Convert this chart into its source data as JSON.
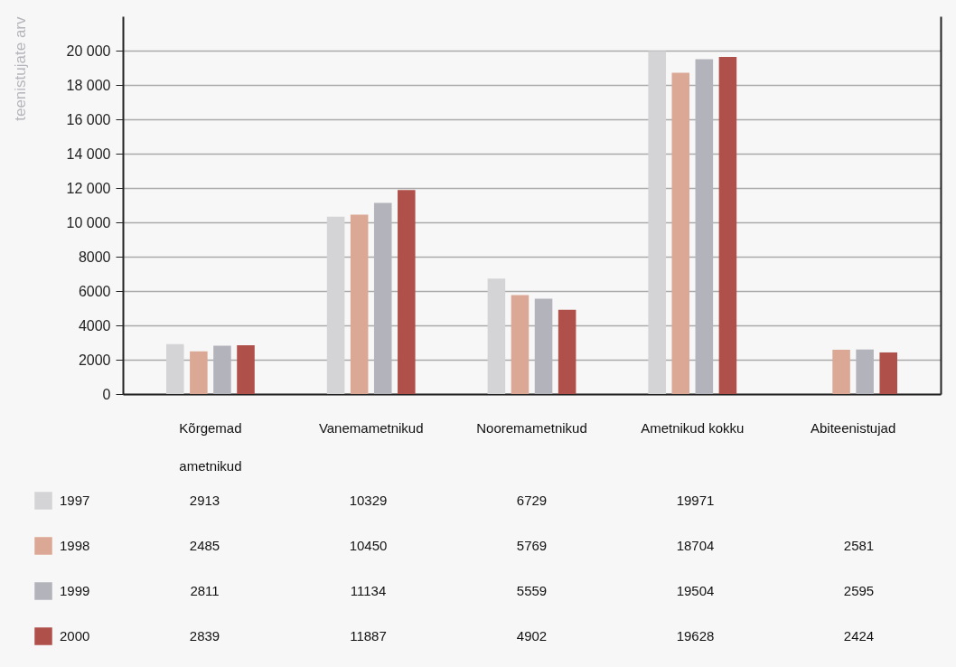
{
  "chart_data": {
    "type": "bar",
    "ylabel": "teenistujate arv",
    "categories": [
      "Kõrgemad ametnikud",
      "Vanemametnikud",
      "Nooremametnikud",
      "Ametnikud kokku",
      "Abiteenistujad"
    ],
    "series": [
      {
        "name": "1997",
        "color": "#d4d4d6",
        "values": [
          2913,
          10329,
          6729,
          19971,
          null
        ]
      },
      {
        "name": "1998",
        "color": "#dca896",
        "values": [
          2485,
          10450,
          5769,
          18704,
          2581
        ]
      },
      {
        "name": "1999",
        "color": "#b3b3bb",
        "values": [
          2811,
          11134,
          5559,
          19504,
          2595
        ]
      },
      {
        "name": "2000",
        "color": "#b0504a",
        "values": [
          2839,
          11887,
          4902,
          19628,
          2424
        ]
      }
    ],
    "ylim": [
      0,
      22000
    ],
    "yticks": [
      0,
      2000,
      4000,
      6000,
      8000,
      {
        "value": 10000,
        "label": "10 000"
      },
      {
        "value": 12000,
        "label": "12 000"
      },
      {
        "value": 14000,
        "label": "14 000"
      },
      {
        "value": 16000,
        "label": "16 000"
      },
      {
        "value": 18000,
        "label": "18 000"
      },
      {
        "value": 20000,
        "label": "20 000"
      }
    ],
    "grid": "y",
    "legend": "bottom",
    "data_labels": true
  }
}
